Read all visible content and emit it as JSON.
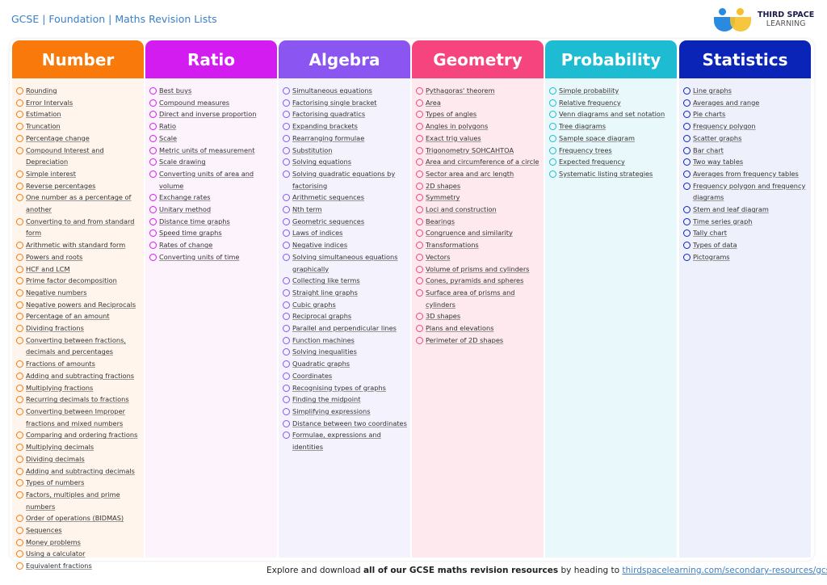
{
  "header": {
    "title": "GCSE | Foundation | Maths Revision Lists",
    "logo_line1": "THIRD SPACE",
    "logo_line2": "LEARNING"
  },
  "columns": [
    {
      "name": "Number",
      "color": "#f97a0a",
      "bg": "#fff5ec",
      "items": [
        "Rounding",
        "Error Intervals",
        "Estimation",
        "Truncation",
        "Percentage change",
        "Compound Interest and Depreciation",
        "Simple interest",
        "Reverse percentages",
        "One number as a percentage of another",
        "Converting to and from standard form",
        "Arithmetic with standard form",
        "Powers and roots",
        "HCF and LCM",
        "Prime factor decomposition",
        "Negative numbers",
        "Negative powers and Reciprocals",
        "Percentage of an amount",
        "Dividing fractions",
        "Converting between fractions, decimals and percentages",
        "Fractions of amounts",
        "Adding and subtracting fractions",
        "Multiplying fractions",
        "Recurring decimals to fractions",
        "Converting between Improper fractions and mixed numbers",
        "Comparing and ordering fractions",
        "Multiplying decimals",
        "Dividing decimals",
        "Adding and subtracting decimals",
        "Types of numbers",
        "Factors, multiples and prime numbers",
        "Order of operations (BIDMAS)",
        "Sequences",
        "Money problems",
        "Using a calculator",
        "Equivalent fractions"
      ]
    },
    {
      "name": "Ratio",
      "color": "#d21cf0",
      "bg": "#fdf3fd",
      "items": [
        "Best buys",
        "Compound measures",
        "Direct and inverse proportion",
        "Ratio",
        "Scale",
        "Metric units of measurement",
        "Scale drawing",
        "Converting units of area and volume",
        "Exchange rates",
        "Unitary method",
        "Distance time graphs",
        "Speed time graphs",
        "Rates of change",
        "Converting units of time"
      ]
    },
    {
      "name": "Algebra",
      "color": "#8a55f0",
      "bg": "#f4f2fd",
      "items": [
        "Simultaneous equations",
        "Factorising single bracket",
        "Factorising quadratics",
        "Expanding brackets",
        "Rearranging formulae",
        "Substitution",
        "Solving equations",
        "Solving quadratic equations by factorising",
        "Arithmetic sequences",
        "Nth term",
        "Geometric sequences",
        "Laws of indices",
        "Negative indices",
        "Solving simultaneous equations graphically",
        "Collecting like terms",
        "Straight line graphs",
        "Cubic graphs",
        "Reciprocal graphs",
        "Parallel and perpendicular lines",
        "Function machines",
        "Solving inequalities",
        "Quadratic graphs",
        "Coordinates",
        "Recognising types of graphs",
        "Finding the midpoint",
        "Simplifying expressions",
        "Distance between two coordinates",
        "Formulae, expressions and identities"
      ]
    },
    {
      "name": "Geometry",
      "color": "#f5447e",
      "bg": "#fde9ee",
      "items": [
        "Pythagoras' theorem",
        "Area",
        "Types of angles",
        "Angles in polygons",
        "Exact trig values",
        "Trigonometry SOHCAHTOA",
        "Area and circumference of a circle",
        "Sector area and arc length",
        "2D shapes",
        "Symmetry",
        "Loci and construction",
        "Bearings",
        "Congruence and similarity",
        "Transformations",
        "Vectors",
        "Volume of prisms and cylinders",
        "Cones, pyramids and spheres",
        "Surface area of prisms and cylinders",
        "3D shapes",
        "Plans and elevations",
        "Perimeter of 2D shapes"
      ]
    },
    {
      "name": "Probability",
      "color": "#1ebcd2",
      "bg": "#e8f8fb",
      "items": [
        "Simple probability",
        "Relative frequency",
        "Venn diagrams and set notation",
        "Tree diagrams",
        "Sample space diagram",
        "Frequency trees",
        "Expected frequency",
        "Systematic listing strategies"
      ]
    },
    {
      "name": "Statistics",
      "color": "#0a24b8",
      "bg": "#eef0fb",
      "items": [
        "Line graphs",
        "Averages and range",
        "Pie charts",
        "Frequency polygon",
        "Scatter graphs",
        "Bar chart",
        "Two way tables",
        "Averages from frequency tables",
        "Frequency polygon and frequency diagrams",
        "Stem and leaf diagram",
        "Time series graph",
        "Tally chart",
        "Types of data",
        "Pictograms"
      ]
    }
  ],
  "footer": {
    "prefix": "Explore and download ",
    "bold": "all of our GCSE maths revision resources",
    "middle": " by heading to ",
    "link": "thirdspacelearning.com/secondary-resources/gcse-maths/"
  }
}
